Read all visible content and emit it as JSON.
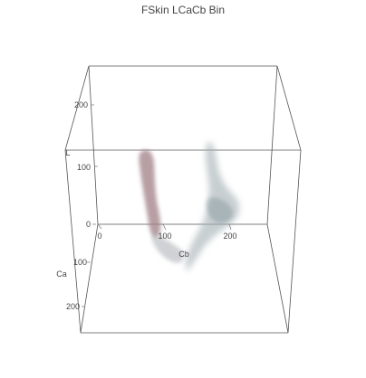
{
  "chart_data": {
    "type": "scatter",
    "title": "FSkin LCaCb Bin",
    "xlabel": "Cb",
    "ylabel": "Ca",
    "zlabel": "L",
    "x_ticks": [
      "0",
      "100",
      "200"
    ],
    "y_ticks": [
      "0",
      "100",
      "200"
    ],
    "z_ticks": [
      "100",
      "200"
    ],
    "xlim": [
      0,
      255
    ],
    "ylim": [
      0,
      255
    ],
    "zlim": [
      0,
      255
    ],
    "grid": false,
    "colors": {
      "box": "#555555",
      "cluster_reddish": "#a07f86",
      "cluster_grey": "#9fa9ad"
    }
  }
}
